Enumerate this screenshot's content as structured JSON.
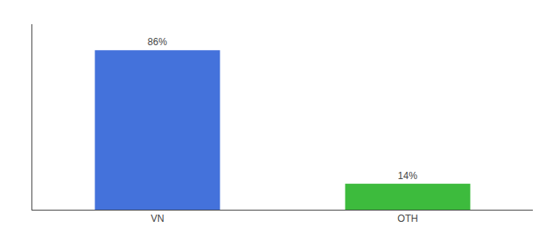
{
  "chart_data": {
    "type": "bar",
    "categories": [
      "VN",
      "OTH"
    ],
    "values": [
      86,
      14
    ],
    "value_labels": [
      "86%",
      "14%"
    ],
    "colors": [
      "#4472db",
      "#3dbb3d"
    ],
    "ylim": [
      0,
      100
    ],
    "data_labels": true,
    "tick_labels": "x",
    "grid": false
  }
}
